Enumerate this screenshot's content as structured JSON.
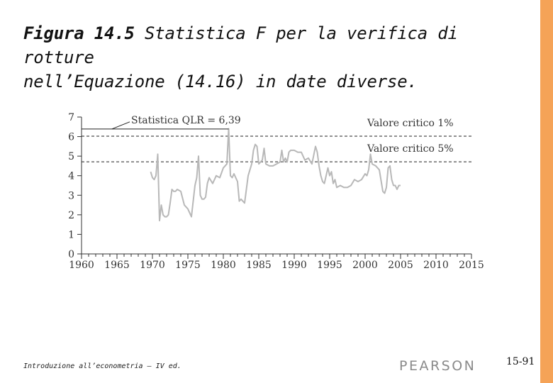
{
  "slide": {
    "title_bold": "Figura 14.5",
    "title_rest_line1": " Statistica F per la verifica di rotture",
    "title_line2": "nell’Equazione (14.16) in date diverse.",
    "footer_left": "Introduzione all’econometria – IV ed.",
    "publisher": "PEARSON",
    "page_number": "15-91"
  },
  "colors": {
    "accent_border": "#f5a357",
    "series_line": "#b8b8b8",
    "axis": "#333333"
  },
  "chart_data": {
    "type": "line",
    "xlim": [
      1960,
      2015
    ],
    "ylim": [
      0,
      7
    ],
    "x_ticks": [
      "1960",
      "1965",
      "1970",
      "1975",
      "1980",
      "1985",
      "1990",
      "1995",
      "2000",
      "2005",
      "2010",
      "2015"
    ],
    "y_ticks": [
      "0",
      "1",
      "2",
      "3",
      "4",
      "5",
      "6",
      "7"
    ],
    "grid": false,
    "reference_lines": [
      {
        "label": "Valore critico 1%",
        "value": 6.02
      },
      {
        "label": "Valore critico 5%",
        "value": 4.71
      }
    ],
    "annotation": {
      "label": "Statistica QLR = 6,39",
      "x": 1980.75,
      "y": 6.39
    },
    "series": [
      {
        "x": [
          1969.75,
          1970.0,
          1970.25,
          1970.5,
          1970.75,
          1971.0,
          1971.25,
          1971.5,
          1971.75,
          1972.0,
          1972.25,
          1972.5,
          1972.75,
          1973.0,
          1973.25,
          1973.5,
          1974.0,
          1974.5,
          1975.0,
          1975.5,
          1976.0,
          1976.25,
          1976.5,
          1976.75,
          1977.0,
          1977.25,
          1977.5,
          1977.75,
          1978.0,
          1978.5,
          1979.0,
          1979.5,
          1980.0,
          1980.25,
          1980.5,
          1980.75,
          1981.0,
          1981.25,
          1981.5,
          1982.0,
          1982.25,
          1982.5,
          1983.0,
          1983.5,
          1984.0,
          1984.25,
          1984.5,
          1984.75,
          1985.0,
          1985.25,
          1985.5,
          1985.75,
          1986.0,
          1986.5,
          1987.0,
          1987.5,
          1988.0,
          1988.25,
          1988.5,
          1988.75,
          1989.0,
          1989.25,
          1989.5,
          1990.0,
          1990.5,
          1991.0,
          1991.5,
          1992.0,
          1992.5,
          1993.0,
          1993.25,
          1993.5,
          1993.75,
          1994.0,
          1994.25,
          1994.5,
          1994.75,
          1995.0,
          1995.25,
          1995.5,
          1995.75,
          1996.0,
          1996.5,
          1997.0,
          1997.5,
          1998.0,
          1998.5,
          1999.0,
          1999.5,
          2000.0,
          2000.25,
          2000.5,
          2000.75,
          2001.0,
          2001.5,
          2002.0,
          2002.5,
          2002.75,
          2003.0,
          2003.25,
          2003.5,
          2003.75,
          2004.0,
          2004.25,
          2004.5,
          2004.75,
          2005.0
        ],
        "y": [
          4.2,
          3.9,
          3.8,
          4.0,
          5.1,
          1.7,
          2.5,
          2.0,
          1.9,
          1.9,
          2.0,
          2.6,
          3.3,
          3.2,
          3.2,
          3.3,
          3.2,
          2.5,
          2.3,
          1.9,
          3.5,
          3.9,
          5.0,
          3.0,
          2.8,
          2.8,
          2.9,
          3.6,
          3.9,
          3.6,
          4.0,
          3.9,
          4.4,
          4.5,
          4.6,
          6.4,
          4.0,
          3.9,
          4.1,
          3.7,
          2.7,
          2.8,
          2.6,
          4.0,
          4.6,
          5.3,
          5.6,
          5.5,
          4.6,
          4.7,
          4.8,
          5.4,
          4.6,
          4.5,
          4.5,
          4.6,
          4.7,
          5.3,
          4.7,
          4.9,
          4.7,
          5.2,
          5.3,
          5.3,
          5.2,
          5.2,
          4.8,
          4.9,
          4.6,
          5.5,
          5.2,
          4.5,
          4.0,
          3.7,
          3.6,
          4.0,
          4.4,
          4.0,
          4.2,
          3.6,
          3.8,
          3.4,
          3.5,
          3.4,
          3.4,
          3.5,
          3.8,
          3.7,
          3.8,
          4.1,
          4.0,
          4.3,
          5.1,
          4.6,
          4.5,
          4.3,
          3.2,
          3.1,
          3.4,
          4.4,
          4.5,
          3.8,
          3.5,
          3.5,
          3.3,
          3.5,
          3.5
        ]
      }
    ]
  }
}
